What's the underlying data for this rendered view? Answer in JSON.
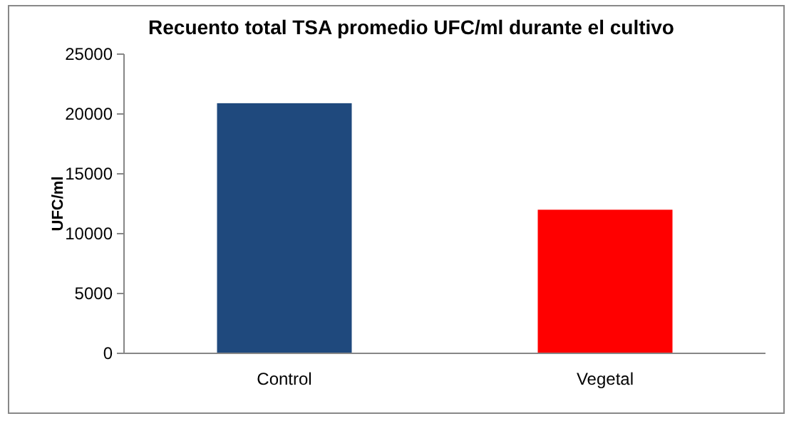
{
  "chart_data": {
    "type": "bar",
    "title": "Recuento total TSA promedio UFC/ml durante el cultivo",
    "ylabel": "UFC/ml",
    "categories": [
      "Control",
      "Vegetal"
    ],
    "values": [
      20900,
      12000
    ],
    "colors": [
      "#1f497d",
      "#ff0000"
    ],
    "ylim": [
      0,
      25000
    ],
    "yticks": [
      0,
      5000,
      10000,
      15000,
      20000,
      25000
    ],
    "grid": false
  }
}
